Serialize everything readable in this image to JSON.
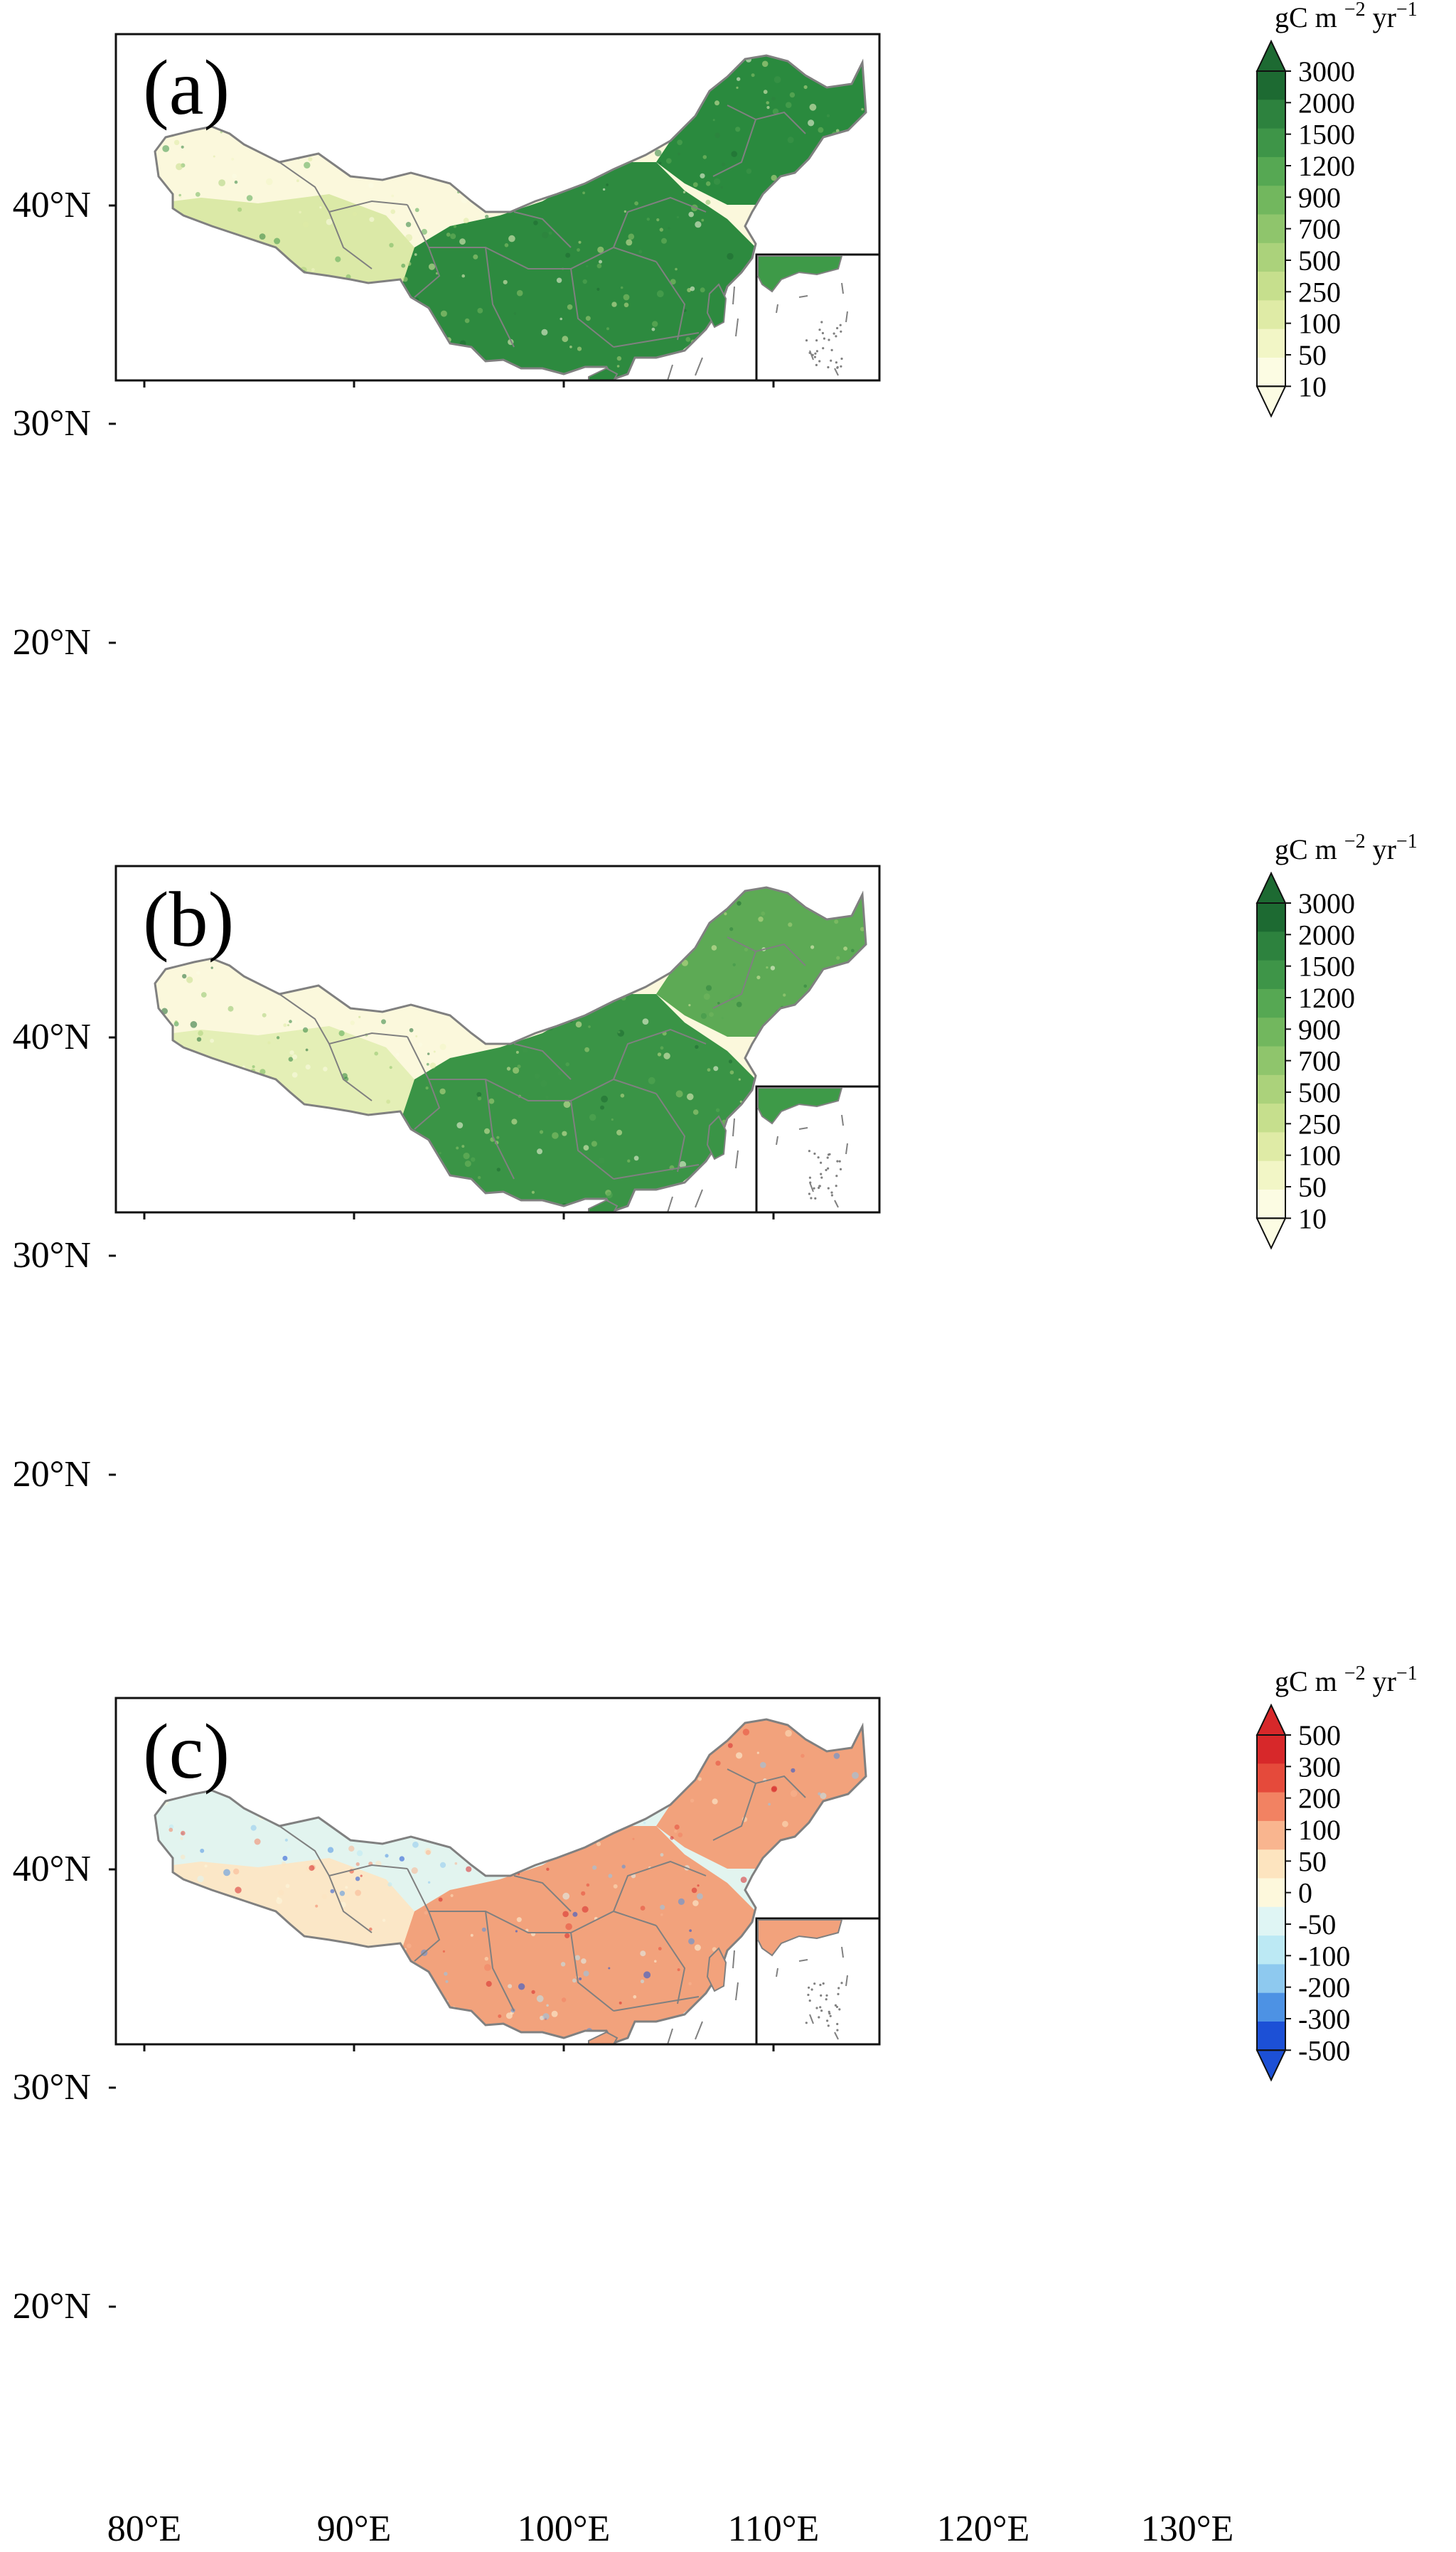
{
  "panels": [
    {
      "label": "(a)",
      "colorbar": {
        "unit_main": "gC m",
        "unit_exp1": "−2",
        "unit_yr": "yr",
        "unit_exp2": "−1",
        "ticks": [
          "3000",
          "2000",
          "1500",
          "1200",
          "900",
          "700",
          "500",
          "250",
          "100",
          "50",
          "10"
        ],
        "colors": [
          "#1d6a32",
          "#2d823e",
          "#3e9548",
          "#56a853",
          "#72b75e",
          "#8fc56c",
          "#abd27b",
          "#c6df8d",
          "#dfeba6",
          "#f2f6c6",
          "#fcfce3"
        ],
        "extend": "both"
      },
      "ne_color": "#2a8a3e",
      "south_color": "#2d8a3f",
      "north_color": "#fbf8dc",
      "tibet_color": "#dbe9a7",
      "inset_color": "#3e9a48"
    },
    {
      "label": "(b)",
      "colorbar": {
        "unit_main": "gC m",
        "unit_exp1": "−2",
        "unit_yr": "yr",
        "unit_exp2": "−1",
        "ticks": [
          "3000",
          "2000",
          "1500",
          "1200",
          "900",
          "700",
          "500",
          "250",
          "100",
          "50",
          "10"
        ],
        "colors": [
          "#1d6a32",
          "#2d823e",
          "#3e9548",
          "#56a853",
          "#72b75e",
          "#8fc56c",
          "#abd27b",
          "#c6df8d",
          "#dfeba6",
          "#f2f6c6",
          "#fcfce3"
        ],
        "extend": "both"
      },
      "ne_color": "#5daa55",
      "south_color": "#3a9446",
      "north_color": "#fbf8dc",
      "tibet_color": "#e4efb6",
      "inset_color": "#3e9a48"
    },
    {
      "label": "(c)",
      "colorbar": {
        "unit_main": "gC m",
        "unit_exp1": "−2",
        "unit_yr": "yr",
        "unit_exp2": "−1",
        "ticks": [
          "500",
          "300",
          "200",
          "100",
          "50",
          "0",
          "-50",
          "-100",
          "-200",
          "-300",
          "-500"
        ],
        "colors": [
          "#d7282a",
          "#e54a3b",
          "#f28262",
          "#f9b58f",
          "#fde4bf",
          "#fdf8dc",
          "#dff5f4",
          "#bce9f4",
          "#8ec9ef",
          "#4d92e4",
          "#1c50d6"
        ],
        "extend": "both"
      },
      "ne_color": "#f2a27c",
      "south_color": "#f2a27c",
      "north_color": "#e2f4ef",
      "tibet_color": "#fbe7c7",
      "inset_color": "#f2a27c"
    }
  ],
  "y_ticks": [
    "40°N",
    "30°N",
    "20°N"
  ],
  "x_ticks": [
    "80°E",
    "90°E",
    "100°E",
    "110°E",
    "120°E",
    "130°E"
  ],
  "map_range": {
    "lon": [
      80,
      130
    ],
    "lat": [
      15,
      50
    ]
  },
  "border_color": "#808080"
}
